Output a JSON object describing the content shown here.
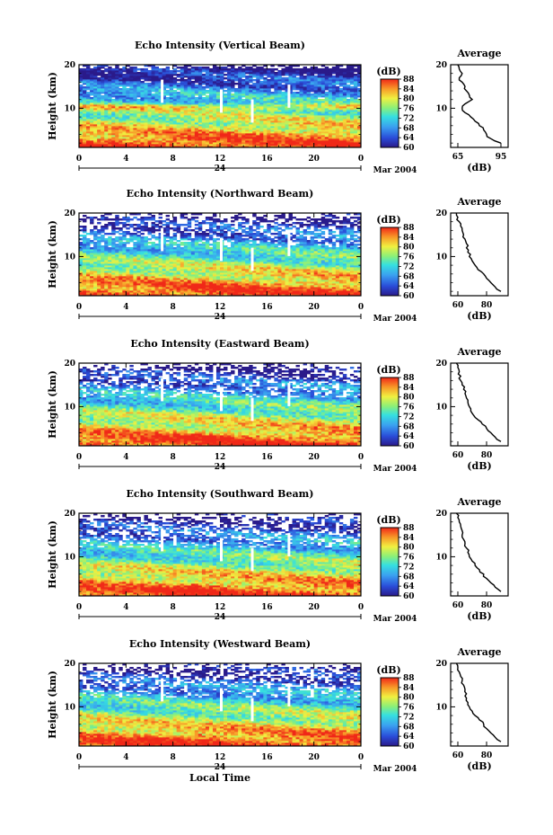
{
  "chart_data": [
    {
      "type": "heatmap",
      "title": "Echo Intensity (Vertical Beam)",
      "xlabel": "",
      "ylabel": "Height (km)",
      "xticks": [
        "0",
        "4",
        "8",
        "12",
        "16",
        "20",
        "0"
      ],
      "xlim": [
        0,
        24
      ],
      "yticks": [
        "20",
        "10"
      ],
      "ylim": [
        1,
        20
      ],
      "day_label": "24",
      "date_label": "Mar 2004",
      "colorbar": {
        "unit": "(dB)",
        "ticks": [
          "88",
          "84",
          "80",
          "76",
          "72",
          "68",
          "64",
          "60"
        ],
        "range": [
          60,
          88
        ]
      },
      "profile": {
        "title": "Average",
        "xlabel": "(dB)",
        "xticks": [
          "65",
          "95"
        ],
        "xlim": [
          60,
          100
        ],
        "yticks": [
          "20",
          "10"
        ],
        "ylim": [
          1,
          20
        ],
        "heights": [
          20,
          19,
          18,
          17,
          16,
          15,
          14,
          13,
          12,
          11,
          10,
          9,
          8,
          7,
          6,
          5,
          4,
          3,
          2
        ],
        "values": [
          65,
          66,
          68,
          66,
          68,
          70,
          71,
          73,
          75,
          70,
          68,
          70,
          74,
          77,
          80,
          83,
          85,
          88,
          95
        ]
      }
    },
    {
      "type": "heatmap",
      "title": "Echo Intensity (Northward Beam)",
      "xlabel": "",
      "ylabel": "Height (km)",
      "xticks": [
        "0",
        "4",
        "8",
        "12",
        "16",
        "20",
        "0"
      ],
      "xlim": [
        0,
        24
      ],
      "yticks": [
        "20",
        "10"
      ],
      "ylim": [
        1,
        20
      ],
      "day_label": "24",
      "date_label": "Mar 2004",
      "colorbar": {
        "unit": "(dB)",
        "ticks": [
          "88",
          "84",
          "80",
          "76",
          "72",
          "68",
          "64",
          "60"
        ],
        "range": [
          60,
          88
        ]
      },
      "profile": {
        "title": "Average",
        "xlabel": "(dB)",
        "xticks": [
          "60",
          "80"
        ],
        "xlim": [
          55,
          95
        ],
        "yticks": [
          "20",
          "10"
        ],
        "ylim": [
          1,
          20
        ],
        "heights": [
          20,
          19,
          18,
          17,
          16,
          15,
          14,
          13,
          12,
          11,
          10,
          9,
          8,
          7,
          6,
          5,
          4,
          3,
          2
        ],
        "values": [
          59,
          60,
          61,
          62,
          63,
          64,
          65,
          66,
          66,
          67,
          68,
          70,
          72,
          74,
          78,
          80,
          83,
          86,
          90
        ]
      }
    },
    {
      "type": "heatmap",
      "title": "Echo Intensity (Eastward Beam)",
      "xlabel": "",
      "ylabel": "Height (km)",
      "xticks": [
        "0",
        "4",
        "8",
        "12",
        "16",
        "20",
        "0"
      ],
      "xlim": [
        0,
        24
      ],
      "yticks": [
        "20",
        "10"
      ],
      "ylim": [
        1,
        20
      ],
      "day_label": "24",
      "date_label": "Mar 2004",
      "colorbar": {
        "unit": "(dB)",
        "ticks": [
          "88",
          "84",
          "80",
          "76",
          "72",
          "68",
          "64",
          "60"
        ],
        "range": [
          60,
          88
        ]
      },
      "profile": {
        "title": "Average",
        "xlabel": "(dB)",
        "xticks": [
          "60",
          "80"
        ],
        "xlim": [
          55,
          95
        ],
        "yticks": [
          "20",
          "10"
        ],
        "ylim": [
          1,
          20
        ],
        "heights": [
          20,
          19,
          18,
          17,
          16,
          15,
          14,
          13,
          12,
          11,
          10,
          9,
          8,
          7,
          6,
          5,
          4,
          3,
          2
        ],
        "values": [
          59,
          60,
          61,
          62,
          62,
          63,
          64,
          65,
          66,
          67,
          68,
          69,
          71,
          74,
          77,
          80,
          83,
          86,
          90
        ]
      }
    },
    {
      "type": "heatmap",
      "title": "Echo Intensity (Southward Beam)",
      "xlabel": "",
      "ylabel": "Height (km)",
      "xticks": [
        "0",
        "4",
        "8",
        "12",
        "16",
        "20",
        "0"
      ],
      "xlim": [
        0,
        24
      ],
      "yticks": [
        "20",
        "10"
      ],
      "ylim": [
        1,
        20
      ],
      "day_label": "24",
      "date_label": "Mar 2004",
      "colorbar": {
        "unit": "(dB)",
        "ticks": [
          "88",
          "84",
          "80",
          "76",
          "72",
          "68",
          "64",
          "60"
        ],
        "range": [
          60,
          88
        ]
      },
      "profile": {
        "title": "Average",
        "xlabel": "(dB)",
        "xticks": [
          "60",
          "80"
        ],
        "xlim": [
          55,
          95
        ],
        "yticks": [
          "20",
          "10"
        ],
        "ylim": [
          1,
          20
        ],
        "heights": [
          20,
          19,
          18,
          17,
          16,
          15,
          14,
          13,
          12,
          11,
          10,
          9,
          8,
          7,
          6,
          5,
          4,
          3,
          2
        ],
        "values": [
          59,
          60,
          61,
          62,
          63,
          63,
          64,
          65,
          66,
          67,
          68,
          70,
          72,
          75,
          78,
          80,
          83,
          86,
          90
        ]
      }
    },
    {
      "type": "heatmap",
      "title": "Echo Intensity (Westward Beam)",
      "xlabel": "Local Time",
      "ylabel": "Height (km)",
      "xticks": [
        "0",
        "4",
        "8",
        "12",
        "16",
        "20",
        "0"
      ],
      "xlim": [
        0,
        24
      ],
      "yticks": [
        "20",
        "10"
      ],
      "ylim": [
        1,
        20
      ],
      "day_label": "24",
      "date_label": "Mar 2004",
      "colorbar": {
        "unit": "(dB)",
        "ticks": [
          "88",
          "84",
          "80",
          "76",
          "72",
          "68",
          "64",
          "60"
        ],
        "range": [
          60,
          88
        ]
      },
      "profile": {
        "title": "Average",
        "xlabel": "(dB)",
        "xticks": [
          "60",
          "80"
        ],
        "xlim": [
          55,
          95
        ],
        "yticks": [
          "20",
          "10"
        ],
        "ylim": [
          1,
          20
        ],
        "heights": [
          20,
          19,
          18,
          17,
          16,
          15,
          14,
          13,
          12,
          11,
          10,
          9,
          8,
          7,
          6,
          5,
          4,
          3,
          2
        ],
        "values": [
          59,
          60,
          61,
          62,
          63,
          64,
          65,
          66,
          66,
          67,
          68,
          70,
          72,
          75,
          78,
          80,
          83,
          86,
          90
        ]
      }
    }
  ]
}
